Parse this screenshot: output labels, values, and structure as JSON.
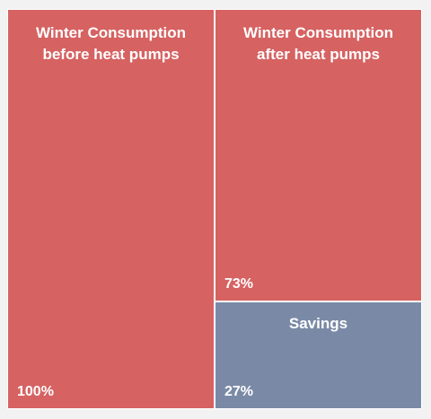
{
  "chart_data": {
    "type": "treemap",
    "title": "",
    "tiles": [
      {
        "name": "Winter Consumption\nbefore heat pumps",
        "label": "100%",
        "value": 100,
        "color": "#d66262"
      },
      {
        "name": "Winter Consumption\nafter heat pumps",
        "label": "73%",
        "value": 73,
        "color": "#d66262"
      },
      {
        "name": "Savings",
        "label": "27%",
        "value": 27,
        "color": "#7a8aa6"
      }
    ]
  }
}
